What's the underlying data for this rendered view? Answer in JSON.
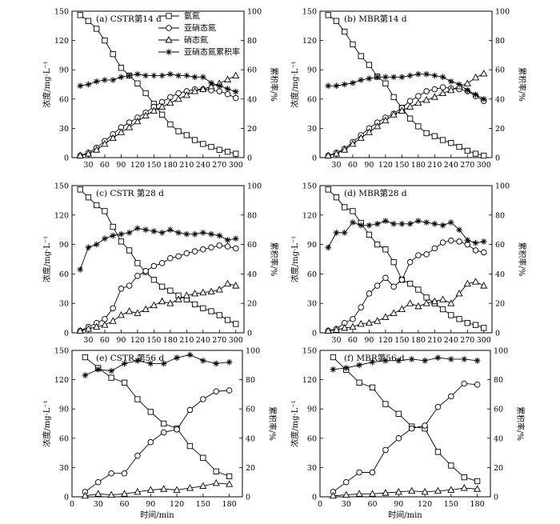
{
  "figure": {
    "xlabel": "时间/min",
    "y1label": "浓度/mg·L⁻¹",
    "y2label": "累积率/%",
    "legend": [
      "氨氮",
      "亚硝态氮",
      "硝态氮",
      "亚硝态氮累积率"
    ]
  },
  "series_styles": [
    {
      "key": "ammonia",
      "marker": "square",
      "color": "#000000"
    },
    {
      "key": "nitrite",
      "marker": "circle",
      "color": "#000000"
    },
    {
      "key": "nitrate",
      "marker": "triangle",
      "color": "#000000"
    },
    {
      "key": "accumulation",
      "marker": "star",
      "color": "#000000",
      "axis": "right"
    }
  ],
  "chart_data": [
    {
      "type": "line",
      "title": "(a) CSTR第14 d",
      "xlim": [
        0,
        315
      ],
      "xticks": [
        30,
        60,
        90,
        120,
        150,
        180,
        210,
        240,
        270,
        300
      ],
      "ylim": [
        0,
        150
      ],
      "yticks": [
        0,
        30,
        60,
        90,
        120,
        150
      ],
      "y2lim": [
        0,
        100
      ],
      "y2ticks": [
        0,
        20,
        40,
        60,
        80,
        100
      ],
      "x": [
        15,
        30,
        45,
        60,
        75,
        90,
        105,
        120,
        135,
        150,
        165,
        180,
        195,
        210,
        225,
        240,
        255,
        270,
        285,
        300
      ],
      "series": [
        {
          "name": "氨氮",
          "values": [
            146,
            140,
            132,
            120,
            106,
            92,
            84,
            76,
            66,
            55,
            44,
            34,
            27,
            23,
            18,
            14,
            11,
            8,
            6,
            4
          ]
        },
        {
          "name": "亚硝态氮",
          "values": [
            2,
            5,
            10,
            17,
            24,
            31,
            36,
            41,
            46,
            52,
            57,
            62,
            66,
            68,
            70,
            70,
            69,
            68,
            65,
            61
          ]
        },
        {
          "name": "硝态氮",
          "values": [
            2,
            4,
            8,
            14,
            20,
            26,
            31,
            37,
            43,
            48,
            52,
            56,
            60,
            64,
            68,
            70,
            73,
            76,
            80,
            84
          ]
        },
        {
          "name": "亚硝态氮累积率",
          "axis": "right",
          "values": [
            49,
            50,
            52,
            53,
            53,
            55,
            56,
            57,
            56,
            56,
            56,
            57,
            56,
            56,
            55,
            55,
            51,
            49,
            47,
            45
          ]
        }
      ]
    },
    {
      "type": "line",
      "title": "(b) MBR第14 d",
      "xlim": [
        0,
        315
      ],
      "xticks": [
        30,
        60,
        90,
        120,
        150,
        180,
        210,
        240,
        270,
        300
      ],
      "ylim": [
        0,
        150
      ],
      "yticks": [
        0,
        30,
        60,
        90,
        120,
        150
      ],
      "y2lim": [
        0,
        100
      ],
      "y2ticks": [
        0,
        20,
        40,
        60,
        80,
        100
      ],
      "x": [
        15,
        30,
        45,
        60,
        75,
        90,
        105,
        120,
        135,
        150,
        165,
        180,
        195,
        210,
        225,
        240,
        255,
        270,
        285,
        300
      ],
      "series": [
        {
          "name": "氨氮",
          "values": [
            146,
            140,
            129,
            116,
            104,
            95,
            83,
            76,
            62,
            51,
            40,
            32,
            25,
            22,
            18,
            15,
            11,
            7,
            4,
            2
          ]
        },
        {
          "name": "亚硝态氮",
          "values": [
            2,
            5,
            9,
            16,
            23,
            30,
            36,
            41,
            45,
            51,
            58,
            63,
            68,
            70,
            72,
            71,
            70,
            68,
            63,
            58
          ]
        },
        {
          "name": "硝态氮",
          "values": [
            2,
            4,
            8,
            14,
            20,
            26,
            32,
            38,
            44,
            48,
            52,
            56,
            59,
            62,
            66,
            69,
            73,
            76,
            82,
            86
          ]
        },
        {
          "name": "亚硝态氮累积率",
          "axis": "right",
          "values": [
            49,
            49,
            50,
            51,
            53,
            54,
            55,
            55,
            55,
            55,
            56,
            57,
            57,
            56,
            55,
            52,
            50,
            46,
            43,
            40
          ]
        }
      ]
    },
    {
      "type": "line",
      "title": "(c) CSTR 第28 d",
      "xlim": [
        0,
        315
      ],
      "xticks": [
        30,
        60,
        90,
        120,
        150,
        180,
        210,
        240,
        270,
        300
      ],
      "ylim": [
        0,
        150
      ],
      "yticks": [
        0,
        30,
        60,
        90,
        120,
        150
      ],
      "y2lim": [
        0,
        100
      ],
      "y2ticks": [
        0,
        20,
        40,
        60,
        80,
        100
      ],
      "x": [
        15,
        30,
        45,
        60,
        75,
        90,
        105,
        120,
        135,
        150,
        165,
        180,
        195,
        210,
        225,
        240,
        255,
        270,
        285,
        300
      ],
      "series": [
        {
          "name": "氨氮",
          "values": [
            146,
            138,
            130,
            124,
            108,
            93,
            84,
            71,
            62,
            54,
            47,
            43,
            38,
            34,
            29,
            25,
            22,
            18,
            13,
            9
          ]
        },
        {
          "name": "亚硝态氮",
          "values": [
            2,
            6,
            10,
            14,
            25,
            45,
            48,
            58,
            63,
            68,
            71,
            76,
            78,
            81,
            83,
            85,
            87,
            89,
            88,
            86
          ]
        },
        {
          "name": "硝态氮",
          "values": [
            2,
            4,
            6,
            8,
            12,
            18,
            22,
            20,
            24,
            28,
            32,
            30,
            34,
            38,
            40,
            41,
            42,
            44,
            50,
            48
          ]
        },
        {
          "name": "亚硝态氮累积率",
          "axis": "right",
          "values": [
            43,
            58,
            60,
            64,
            66,
            67,
            68,
            71,
            70,
            69,
            68,
            70,
            68,
            67,
            67,
            68,
            67,
            66,
            63,
            64
          ]
        }
      ]
    },
    {
      "type": "line",
      "title": "(d) MBR第28 d",
      "xlim": [
        0,
        315
      ],
      "xticks": [
        30,
        60,
        90,
        120,
        150,
        180,
        210,
        240,
        270,
        300
      ],
      "ylim": [
        0,
        150
      ],
      "yticks": [
        0,
        30,
        60,
        90,
        120,
        150
      ],
      "y2lim": [
        0,
        100
      ],
      "y2ticks": [
        0,
        20,
        40,
        60,
        80,
        100
      ],
      "x": [
        15,
        30,
        45,
        60,
        75,
        90,
        105,
        120,
        135,
        150,
        165,
        180,
        195,
        210,
        225,
        240,
        255,
        270,
        285,
        300
      ],
      "series": [
        {
          "name": "氨氮",
          "values": [
            146,
            138,
            128,
            124,
            112,
            100,
            90,
            85,
            72,
            54,
            50,
            44,
            36,
            30,
            24,
            18,
            14,
            10,
            8,
            5
          ]
        },
        {
          "name": "亚硝态氮",
          "values": [
            2,
            4,
            10,
            14,
            26,
            40,
            48,
            56,
            47,
            54,
            72,
            79,
            80,
            86,
            92,
            94,
            93,
            90,
            84,
            82
          ]
        },
        {
          "name": "硝态氮",
          "values": [
            2,
            3,
            5,
            6,
            9,
            10,
            12,
            16,
            20,
            24,
            30,
            27,
            30,
            32,
            34,
            30,
            40,
            50,
            52,
            48
          ]
        },
        {
          "name": "亚硝态氮累积率",
          "axis": "right",
          "values": [
            58,
            68,
            68,
            75,
            73,
            73,
            74,
            76,
            74,
            74,
            74,
            76,
            75,
            74,
            73,
            75,
            70,
            63,
            61,
            62
          ]
        }
      ]
    },
    {
      "type": "line",
      "title": "(e) CSTR 第56 d",
      "xlim": [
        0,
        195
      ],
      "xticks": [
        0,
        30,
        60,
        90,
        120,
        150,
        180
      ],
      "ylim": [
        0,
        150
      ],
      "yticks": [
        0,
        30,
        60,
        90,
        120,
        150
      ],
      "y2lim": [
        0,
        100
      ],
      "y2ticks": [
        0,
        20,
        40,
        60,
        80,
        100
      ],
      "x": [
        15,
        30,
        45,
        60,
        75,
        90,
        105,
        120,
        135,
        150,
        165,
        180
      ],
      "series": [
        {
          "name": "氨氮",
          "values": [
            143,
            132,
            122,
            117,
            100,
            87,
            75,
            70,
            52,
            40,
            26,
            21
          ]
        },
        {
          "name": "亚硝态氮",
          "values": [
            5,
            15,
            24,
            24,
            42,
            56,
            66,
            69,
            89,
            100,
            108,
            109
          ]
        },
        {
          "name": "硝态氮",
          "values": [
            1,
            3,
            2,
            3,
            5,
            7,
            8,
            7,
            9,
            11,
            14,
            13
          ]
        },
        {
          "name": "亚硝态氮累积率",
          "axis": "right",
          "values": [
            83,
            87,
            86,
            91,
            93,
            91,
            91,
            95,
            97,
            93,
            91,
            92
          ]
        }
      ]
    },
    {
      "type": "line",
      "title": "(f) MBR第56 d",
      "xlim": [
        0,
        195
      ],
      "xticks": [
        0,
        30,
        60,
        90,
        120,
        150,
        180
      ],
      "ylim": [
        0,
        150
      ],
      "yticks": [
        0,
        30,
        60,
        90,
        120,
        150
      ],
      "y2lim": [
        0,
        100
      ],
      "y2ticks": [
        0,
        20,
        40,
        60,
        80,
        100
      ],
      "x": [
        15,
        30,
        45,
        60,
        75,
        90,
        105,
        120,
        135,
        150,
        165,
        180
      ],
      "series": [
        {
          "name": "氨氮",
          "values": [
            143,
            130,
            117,
            112,
            95,
            85,
            72,
            70,
            46,
            32,
            20,
            16
          ]
        },
        {
          "name": "亚硝态氮",
          "values": [
            5,
            15,
            25,
            25,
            48,
            60,
            70,
            73,
            92,
            103,
            116,
            115
          ]
        },
        {
          "name": "硝态氮",
          "values": [
            1,
            2,
            3,
            3,
            4,
            5,
            6,
            5,
            6,
            7,
            9,
            8
          ]
        },
        {
          "name": "亚硝态氮累积率",
          "axis": "right",
          "values": [
            87,
            88,
            90,
            92,
            93,
            93,
            94,
            93,
            95,
            94,
            94,
            93
          ]
        }
      ]
    }
  ]
}
